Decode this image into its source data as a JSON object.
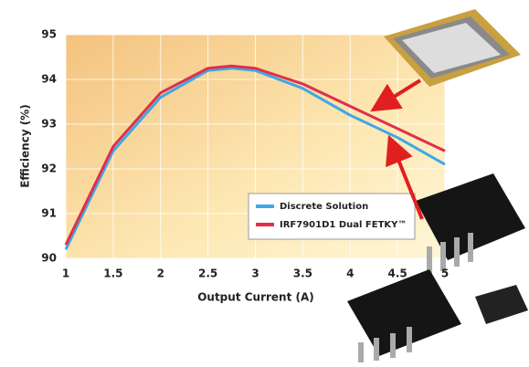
{
  "chart_data": {
    "type": "line",
    "y_label": "Efficiency (%)",
    "x_label": "Output Current (A)",
    "x": [
      1,
      1.5,
      2,
      2.5,
      2.75,
      3,
      3.5,
      4,
      4.5,
      5
    ],
    "series": [
      {
        "name": "Discrete Solution",
        "color": "#3ea8e6",
        "values": [
          90.2,
          92.4,
          93.6,
          94.2,
          94.25,
          94.2,
          93.8,
          93.2,
          92.7,
          92.1
        ]
      },
      {
        "name": "IRF7901D1 Dual FETKY™",
        "color": "#e0304a",
        "values": [
          90.3,
          92.5,
          93.7,
          94.25,
          94.3,
          94.25,
          93.9,
          93.4,
          92.9,
          92.4
        ]
      }
    ],
    "xlim": [
      1,
      5
    ],
    "xticks": [
      1,
      1.5,
      2,
      2.5,
      3,
      3.5,
      4,
      4.5,
      5
    ],
    "ylim": [
      90,
      95
    ],
    "yticks": [
      90,
      91,
      92,
      93,
      94,
      95
    ],
    "grid": true
  }
}
